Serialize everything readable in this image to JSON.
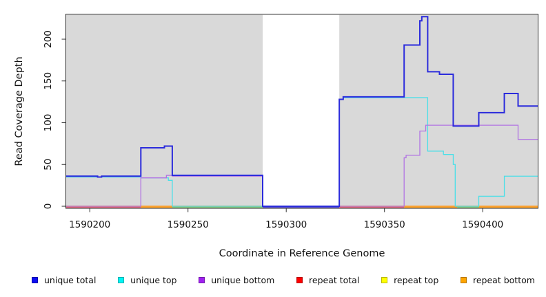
{
  "chart_data": {
    "type": "line",
    "subtype": "step",
    "title": "",
    "xlabel": "Coordinate in Reference Genome",
    "ylabel": "Read Coverage Depth",
    "xlim": [
      1590188,
      1590428
    ],
    "ylim": [
      0,
      230
    ],
    "x_ticks": [
      1590200,
      1590250,
      1590300,
      1590350,
      1590400
    ],
    "y_ticks": [
      0,
      50,
      100,
      150,
      200
    ],
    "plot_bg": "#d9d9d9",
    "frame_color": "#2e2e2e",
    "gap_region": {
      "from": 1590288,
      "to": 1590327,
      "fill": "#ffffff"
    },
    "series": [
      {
        "name": "repeat total",
        "color": "#e0607c",
        "width": 1.4,
        "steps": [
          [
            1590188,
            0
          ]
        ]
      },
      {
        "name": "repeat top",
        "color": "#f5e626",
        "width": 1.2,
        "steps": [
          [
            1590188,
            0
          ]
        ]
      },
      {
        "name": "repeat bottom",
        "color": "#ff9f1f",
        "width": 1.4,
        "steps": [
          [
            1590188,
            0
          ]
        ]
      },
      {
        "name": "unique top",
        "color": "#49dfe8",
        "width": 1.3,
        "steps": [
          [
            1590188,
            35
          ],
          [
            1590226,
            34
          ],
          [
            1590240,
            31
          ],
          [
            1590242,
            0
          ],
          [
            1590327,
            128
          ],
          [
            1590329,
            130
          ],
          [
            1590372,
            66
          ],
          [
            1590380,
            62
          ],
          [
            1590385,
            50
          ],
          [
            1590386,
            0
          ],
          [
            1590398,
            12
          ],
          [
            1590411,
            36
          ]
        ]
      },
      {
        "name": "unique bottom",
        "color": "#b173e3",
        "width": 1.3,
        "steps": [
          [
            1590188,
            0
          ],
          [
            1590226,
            34
          ],
          [
            1590239,
            37
          ],
          [
            1590242,
            36
          ],
          [
            1590288,
            0
          ],
          [
            1590360,
            58
          ],
          [
            1590361,
            61
          ],
          [
            1590368,
            90
          ],
          [
            1590371,
            97
          ],
          [
            1590418,
            80
          ]
        ]
      },
      {
        "name": "unique total",
        "color": "#2b2bdc",
        "width": 2,
        "steps": [
          [
            1590188,
            36
          ],
          [
            1590204,
            35
          ],
          [
            1590206,
            36
          ],
          [
            1590226,
            70
          ],
          [
            1590238,
            72
          ],
          [
            1590242,
            37
          ],
          [
            1590288,
            0
          ],
          [
            1590327,
            128
          ],
          [
            1590329,
            131
          ],
          [
            1590360,
            193
          ],
          [
            1590368,
            222
          ],
          [
            1590369,
            227
          ],
          [
            1590372,
            161
          ],
          [
            1590378,
            158
          ],
          [
            1590385,
            96
          ],
          [
            1590398,
            112
          ],
          [
            1590411,
            135
          ],
          [
            1590418,
            120
          ]
        ]
      }
    ],
    "baseline_segments": [
      {
        "from": 1590188,
        "to": 1590226,
        "color": "#e0607c"
      },
      {
        "from": 1590226,
        "to": 1590242,
        "color": "#ff9f1f"
      },
      {
        "from": 1590242,
        "to": 1590288,
        "color": "#7ecb7e"
      },
      {
        "from": 1590288,
        "to": 1590327,
        "color": "#5149d6"
      },
      {
        "from": 1590327,
        "to": 1590360,
        "color": "#e0607c"
      },
      {
        "from": 1590360,
        "to": 1590387,
        "color": "#ff9f1f"
      },
      {
        "from": 1590387,
        "to": 1590398,
        "color": "#7ecb7e"
      },
      {
        "from": 1590398,
        "to": 1590428,
        "color": "#ff9f1f"
      }
    ]
  },
  "legend": {
    "items": [
      {
        "label": "unique total",
        "color": "#0d0df2"
      },
      {
        "label": "unique top",
        "color": "#00f5f5"
      },
      {
        "label": "unique bottom",
        "color": "#a020f0"
      },
      {
        "label": "repeat total",
        "color": "#ff0000"
      },
      {
        "label": "repeat top",
        "color": "#ffff00"
      },
      {
        "label": "repeat bottom",
        "color": "#ffa500"
      }
    ]
  }
}
